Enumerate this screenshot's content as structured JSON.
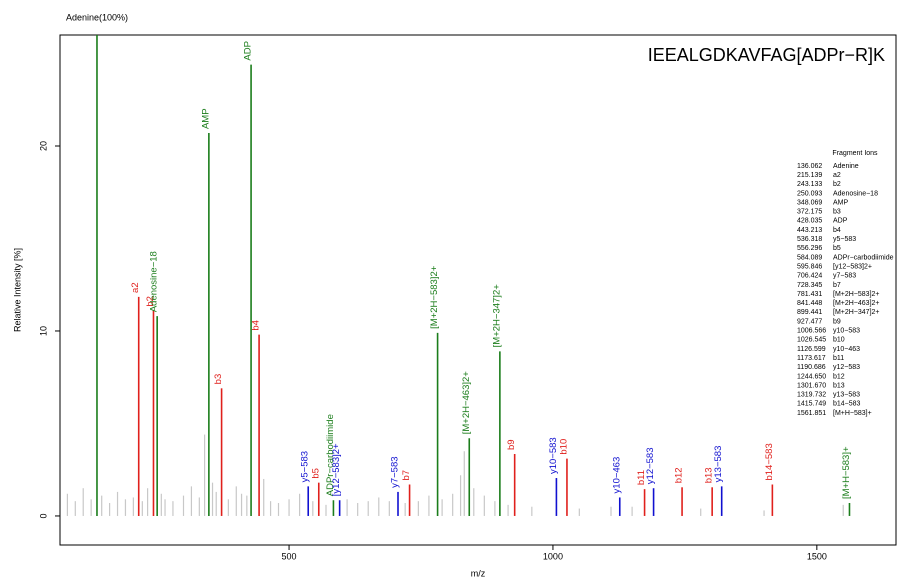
{
  "chart_data": {
    "type": "spectrum",
    "title": "IEEALGDKAVFAG[ADPr−R]K",
    "xlabel": "m/z",
    "ylabel": "Relative Intensity [%]",
    "xlim": [
      66,
      1650
    ],
    "ylim": [
      -1.57,
      26
    ],
    "xticks": [
      500,
      1000,
      1500
    ],
    "yticks": [
      0,
      10,
      20
    ],
    "legend_title": "Fragment Ions",
    "peaks": [
      {
        "mz": 136.062,
        "name": "Adenine",
        "label": "Adenine(100%)",
        "intensity": 100,
        "color": "#1b7d1b"
      },
      {
        "mz": 215.139,
        "name": "a2",
        "intensity": 11.84,
        "color": "#e0201c"
      },
      {
        "mz": 243.133,
        "name": "b2",
        "intensity": 11.1,
        "color": "#e0201c"
      },
      {
        "mz": 250.093,
        "name": "Adenosine−18",
        "intensity": 10.8,
        "color": "#1b7d1b"
      },
      {
        "mz": 348.069,
        "name": "AMP",
        "intensity": 20.7,
        "color": "#1b7d1b"
      },
      {
        "mz": 372.175,
        "name": "b3",
        "intensity": 6.9,
        "color": "#e0201c"
      },
      {
        "mz": 428.035,
        "name": "ADP",
        "intensity": 24.4,
        "color": "#1b7d1b"
      },
      {
        "mz": 443.213,
        "name": "b4",
        "intensity": 9.8,
        "color": "#e0201c"
      },
      {
        "mz": 536.318,
        "name": "y5−583",
        "intensity": 1.6,
        "color": "#1010d0"
      },
      {
        "mz": 556.296,
        "name": "b5",
        "intensity": 1.8,
        "color": "#e0201c"
      },
      {
        "mz": 584.089,
        "name": "ADPr−carbodiimide",
        "intensity": 0.85,
        "color": "#1b7d1b"
      },
      {
        "mz": 595.846,
        "name": "[y12−583]2+",
        "intensity": 0.85,
        "color": "#1010d0"
      },
      {
        "mz": 706.424,
        "name": "y7−583",
        "intensity": 1.3,
        "color": "#1010d0"
      },
      {
        "mz": 728.345,
        "name": "b7",
        "intensity": 1.7,
        "color": "#e0201c"
      },
      {
        "mz": 781.431,
        "name": "[M+2H−583]2+",
        "intensity": 9.9,
        "color": "#1b7d1b"
      },
      {
        "mz": 841.448,
        "name": "[M+2H−463]2+",
        "intensity": 4.2,
        "color": "#1b7d1b"
      },
      {
        "mz": 899.441,
        "name": "[M+2H−347]2+",
        "intensity": 8.9,
        "color": "#1b7d1b"
      },
      {
        "mz": 927.477,
        "name": "b9",
        "intensity": 3.35,
        "color": "#e0201c"
      },
      {
        "mz": 1006.566,
        "name": "y10−583",
        "intensity": 2.05,
        "color": "#1010d0"
      },
      {
        "mz": 1026.545,
        "name": "b10",
        "intensity": 3.1,
        "color": "#e0201c"
      },
      {
        "mz": 1126.599,
        "name": "y10−463",
        "intensity": 1.0,
        "color": "#1010d0"
      },
      {
        "mz": 1173.617,
        "name": "b11",
        "intensity": 1.45,
        "color": "#e0201c"
      },
      {
        "mz": 1190.686,
        "name": "y12−583",
        "intensity": 1.5,
        "color": "#1010d0"
      },
      {
        "mz": {
          "value": 1244.65,
          "label": "1244.650"
        },
        "name": "b12",
        "intensity": 1.55,
        "color": "#e0201c"
      },
      {
        "mz": {
          "value": 1301.67,
          "label": "1301.670"
        },
        "name": "b13",
        "intensity": 1.55,
        "color": "#e0201c"
      },
      {
        "mz": 1319.732,
        "name": "y13−583",
        "intensity": 1.6,
        "color": "#1010d0"
      },
      {
        "mz": 1415.749,
        "name": "b14−583",
        "intensity": 1.7,
        "color": "#e0201c"
      },
      {
        "mz": 1561.851,
        "name": "[M+H−583]+",
        "intensity": 0.7,
        "color": "#1b7d1b"
      }
    ],
    "background": {
      "color": "#c8c8c8",
      "x": [
        80,
        95,
        110,
        125,
        145,
        160,
        175,
        190,
        205,
        222,
        232,
        258,
        265,
        280,
        300,
        315,
        330,
        340,
        355,
        362,
        385,
        400,
        410,
        420,
        452,
        465,
        480,
        500,
        520,
        545,
        570,
        610,
        630,
        650,
        670,
        690,
        720,
        745,
        765,
        790,
        810,
        825,
        832,
        850,
        870,
        890,
        915,
        960,
        1050,
        1110,
        1150,
        1280,
        1400,
        1550
      ],
      "values": [
        1.2,
        0.8,
        1.5,
        0.9,
        1.1,
        0.7,
        1.3,
        0.9,
        1.0,
        0.8,
        1.5,
        1.2,
        0.9,
        0.8,
        1.1,
        1.6,
        1.0,
        4.4,
        1.8,
        1.3,
        0.9,
        1.6,
        1.2,
        1.1,
        2.0,
        0.8,
        0.7,
        0.9,
        1.2,
        0.8,
        0.6,
        0.9,
        0.7,
        0.8,
        1.0,
        0.8,
        0.7,
        0.8,
        1.1,
        0.9,
        1.2,
        2.2,
        3.5,
        1.5,
        1.1,
        0.8,
        0.6,
        0.5,
        0.4,
        0.5,
        0.5,
        0.4,
        0.3,
        0.6
      ]
    }
  }
}
